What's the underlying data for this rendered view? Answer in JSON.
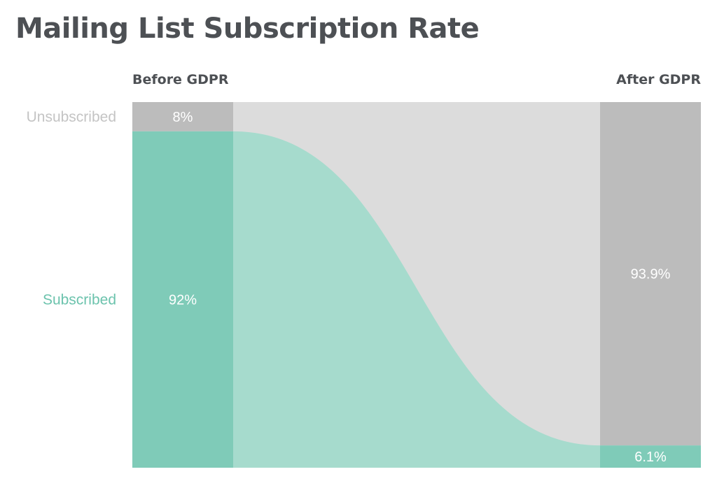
{
  "title": "Mailing List Subscription Rate",
  "colors": {
    "subscribed": "#7fcbb8",
    "subscribed_flow": "#a6dbcd",
    "unsubscribed": "#bcbcbc",
    "unsubscribed_flow": "#dcdcdc",
    "subscribed_label": "#6cc3ad",
    "unsubscribed_label": "#c4c4c4",
    "text_dark": "#4d5054"
  },
  "chart_data": {
    "type": "sankey",
    "title": "Mailing List Subscription Rate",
    "stages": [
      "Before GDPR",
      "After GDPR"
    ],
    "categories": [
      "Unsubscribed",
      "Subscribed"
    ],
    "series": [
      {
        "name": "Before GDPR",
        "values": [
          8,
          92
        ],
        "labels": [
          "8%",
          "92%"
        ]
      },
      {
        "name": "After GDPR",
        "values": [
          93.9,
          6.1
        ],
        "labels": [
          "93.9%",
          "6.1%"
        ]
      }
    ]
  }
}
